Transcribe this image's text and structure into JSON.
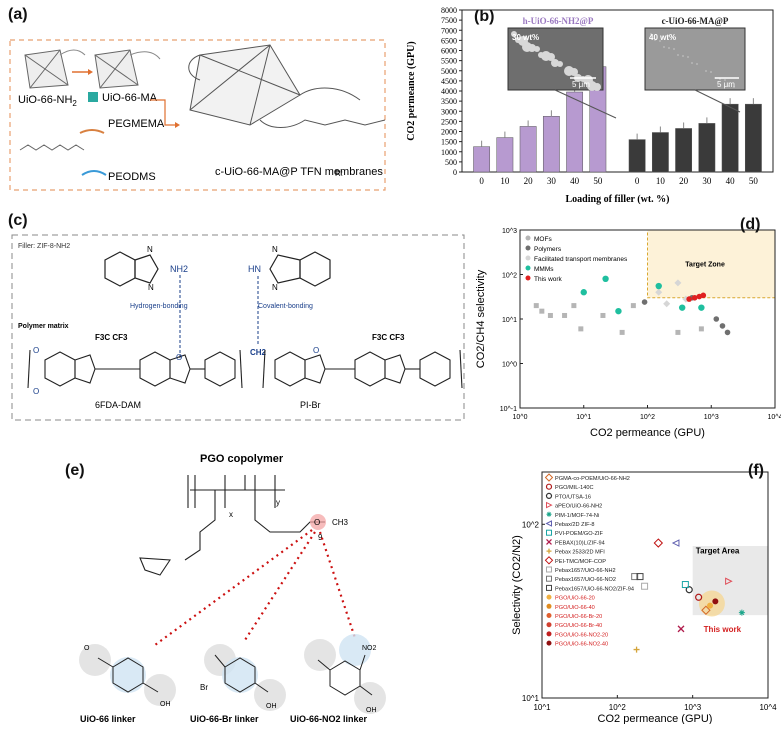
{
  "panel_labels": {
    "a": "(a)",
    "b": "(b)",
    "c": "(c)",
    "d": "(d)",
    "e": "(e)",
    "f": "(f)"
  },
  "panel_a": {
    "uio_nh2": "UiO-66-NH",
    "uio_nh2_sub": "2",
    "uio_ma": "UiO-66-MA",
    "pegmema": "PEGMEMA",
    "peodms": "PEODMS",
    "membrane": "c-UiO-66-MA@P TFN membranes",
    "r_label": "R:"
  },
  "panel_b": {
    "chart_data": {
      "type": "bar",
      "ylabel": "CO2 permeance (GPU)",
      "xlabel": "Loading of filler (wt. %)",
      "ylim": [
        0,
        8000
      ],
      "yticks": [
        0,
        500,
        1000,
        1500,
        2000,
        2500,
        3000,
        3500,
        4000,
        4500,
        5000,
        5500,
        6000,
        6500,
        7000,
        7500,
        8000
      ],
      "categories": [
        "0",
        "10",
        "20",
        "30",
        "40",
        "50"
      ],
      "series": [
        {
          "name": "h-UiO-66-NH2@P",
          "color": "#b79ad0",
          "values": [
            1250,
            1700,
            2250,
            2750,
            3950,
            5200
          ]
        },
        {
          "name": "c-UiO-66-MA@P",
          "color": "#3a3a3a",
          "values": [
            1600,
            1950,
            2150,
            2400,
            3350,
            3350
          ]
        }
      ]
    },
    "inset_left_title": "h-UiO-66-NH",
    "inset_left_sub": "2",
    "inset_left_title2": "@P",
    "inset_left_wt": "30 wt%",
    "inset_right_title": "c-UiO-66-MA@P",
    "inset_right_wt": "40 wt%",
    "scale": "5 μm"
  },
  "panel_c": {
    "filler": "Filler: ZIF-8-NH2",
    "hbond": "Hydrogen-bonding",
    "cbond": "Covalent-bonding",
    "matrix": "Polymer matrix",
    "poly1": "6FDA-DAM",
    "poly2": "PI-Br",
    "nh2": "NH2",
    "hn": "HN",
    "ch2": "CH2",
    "cf3": "F3C  CF3"
  },
  "panel_d": {
    "chart_data": {
      "type": "scatter",
      "xlabel": "CO2 permeance (GPU)",
      "ylabel": "CO2/CH4 selectivity",
      "xscale": "log",
      "yscale": "log",
      "xlim": [
        1,
        10000
      ],
      "ylim": [
        0.1,
        1000
      ],
      "xticks": [
        "10^0",
        "10^1",
        "10^2",
        "10^3",
        "10^4"
      ],
      "yticks": [
        "10^-1",
        "10^0",
        "10^1",
        "10^2",
        "10^3"
      ],
      "target_zone": "Target Zone",
      "legend": [
        "MOFs",
        "Polymers",
        "Facilitated transport membranes",
        "MMMs",
        "This work"
      ],
      "series": [
        {
          "name": "MOFs",
          "color": "#b5b5b5",
          "points": [
            [
              1.8,
              20
            ],
            [
              2.2,
              15
            ],
            [
              3,
              12
            ],
            [
              5,
              12
            ],
            [
              7,
              20
            ],
            [
              9,
              6
            ],
            [
              20,
              12
            ],
            [
              40,
              5
            ],
            [
              60,
              20
            ],
            [
              300,
              5
            ],
            [
              700,
              6
            ]
          ]
        },
        {
          "name": "Polymers",
          "color": "#6f6f6f",
          "points": [
            [
              90,
              24
            ],
            [
              500,
              30
            ],
            [
              1200,
              10
            ],
            [
              1500,
              7
            ],
            [
              1800,
              5
            ]
          ]
        },
        {
          "name": "Facilitated transport membranes",
          "color": "#d6d6d6",
          "points": [
            [
              150,
              40
            ],
            [
              300,
              65
            ],
            [
              200,
              22
            ],
            [
              400,
              28
            ]
          ]
        },
        {
          "name": "MMMs",
          "color": "#1fbf9f",
          "points": [
            [
              10,
              40
            ],
            [
              22,
              80
            ],
            [
              35,
              15
            ],
            [
              150,
              55
            ],
            [
              350,
              18
            ],
            [
              700,
              18
            ]
          ]
        },
        {
          "name": "This work",
          "color": "#e02020",
          "points": [
            [
              450,
              28
            ],
            [
              550,
              30
            ],
            [
              650,
              32
            ],
            [
              750,
              34
            ]
          ]
        }
      ]
    }
  },
  "panel_e": {
    "title": "PGO copolymer",
    "x": "x",
    "y": "y",
    "nine": "9",
    "ch3": "CH3",
    "linker1": "UiO-66 linker",
    "linker2": "UiO-66-Br linker",
    "linker3": "UiO-66-NO2 linker",
    "oh": "OH",
    "o": "O",
    "br": "Br",
    "no2": "NO2"
  },
  "panel_f": {
    "chart_data": {
      "type": "scatter",
      "xlabel": "CO2 permeance (GPU)",
      "ylabel": "Selectivity (CO2/N2)",
      "xscale": "log",
      "yscale": "log",
      "xlim": [
        10,
        10000
      ],
      "ylim": [
        10,
        200
      ],
      "xticks": [
        "10^1",
        "10^2",
        "10^3",
        "10^4"
      ],
      "yticks": [
        "10^1",
        "10^2"
      ],
      "target_area": "Target Area",
      "this_work": "This work",
      "legend": [
        {
          "name": "PGMA-co-POEM/UiO-66-NH2",
          "color": "#d46a2a",
          "marker": "diamond"
        },
        {
          "name": "PGO/MIL-140C",
          "color": "#b01c1c",
          "marker": "circle"
        },
        {
          "name": "PTO/UTSA-16",
          "color": "#333333",
          "marker": "circle"
        },
        {
          "name": "aPEO/UiO-66-NH2",
          "color": "#e0505a",
          "marker": "triangle-right"
        },
        {
          "name": "PIM-1/MOF-74-Ni",
          "color": "#1aa58a",
          "marker": "star"
        },
        {
          "name": "Pebax/2D ZIF-8",
          "color": "#6060b0",
          "marker": "triangle-left"
        },
        {
          "name": "PVI-POEM/GO-ZIF",
          "color": "#1aa5a5",
          "marker": "square"
        },
        {
          "name": "PEBAX(10)L/ZIF-94",
          "color": "#b01c4c",
          "marker": "x"
        },
        {
          "name": "Pebax 2533/2D MFI",
          "color": "#d4a43a",
          "marker": "plus"
        },
        {
          "name": "PEI-TMC/MOF-COP",
          "color": "#c01010",
          "marker": "diamond"
        },
        {
          "name": "Pebax1657/UiO-66-NH2",
          "color": "#aaaaaa",
          "marker": "square"
        },
        {
          "name": "Pebax1657/UiO-66-NO2",
          "color": "#777777",
          "marker": "square"
        },
        {
          "name": "Pebax1657/UiO-66-NO2/ZIF-94",
          "color": "#444444",
          "marker": "square"
        },
        {
          "name": "PGO/UiO-66-20",
          "color": "#f0b040",
          "marker": "ball",
          "red": true
        },
        {
          "name": "PGO/UiO-66-40",
          "color": "#e08c20",
          "marker": "ball",
          "red": true
        },
        {
          "name": "PGO/UiO-66-Br-20",
          "color": "#e06030",
          "marker": "ball",
          "red": true
        },
        {
          "name": "PGO/UiO-66-Br-40",
          "color": "#d04030",
          "marker": "ball",
          "red": true
        },
        {
          "name": "PGO/UiO-66-NO2-20",
          "color": "#c02020",
          "marker": "ball",
          "red": true
        },
        {
          "name": "PGO/UiO-66-NO2-40",
          "color": "#901010",
          "marker": "ball",
          "red": true
        }
      ],
      "points": [
        {
          "series": "PGMA-co-POEM/UiO-66-NH2",
          "x": 1500,
          "y": 32
        },
        {
          "series": "PGO/MIL-140C",
          "x": 1200,
          "y": 38
        },
        {
          "series": "PTO/UTSA-16",
          "x": 900,
          "y": 42
        },
        {
          "series": "aPEO/UiO-66-NH2",
          "x": 3000,
          "y": 47
        },
        {
          "series": "PIM-1/MOF-74-Ni",
          "x": 4500,
          "y": 31
        },
        {
          "series": "Pebax/2D ZIF-8",
          "x": 600,
          "y": 78
        },
        {
          "series": "PVI-POEM/GO-ZIF",
          "x": 800,
          "y": 45
        },
        {
          "series": "PEBAX(10)L/ZIF-94",
          "x": 700,
          "y": 25
        },
        {
          "series": "Pebax 2533/2D MFI",
          "x": 180,
          "y": 19
        },
        {
          "series": "PEI-TMC/MOF-COP",
          "x": 350,
          "y": 78
        },
        {
          "series": "Pebax1657/UiO-66-NH2",
          "x": 230,
          "y": 44
        },
        {
          "series": "Pebax1657/UiO-66-NO2",
          "x": 170,
          "y": 50
        },
        {
          "series": "Pebax1657/UiO-66-NO2/ZIF-94",
          "x": 200,
          "y": 50
        },
        {
          "series": "PGO/UiO-66-20",
          "x": 1700,
          "y": 34
        },
        {
          "series": "PGO/UiO-66-NO2-40",
          "x": 2000,
          "y": 36
        }
      ]
    }
  }
}
